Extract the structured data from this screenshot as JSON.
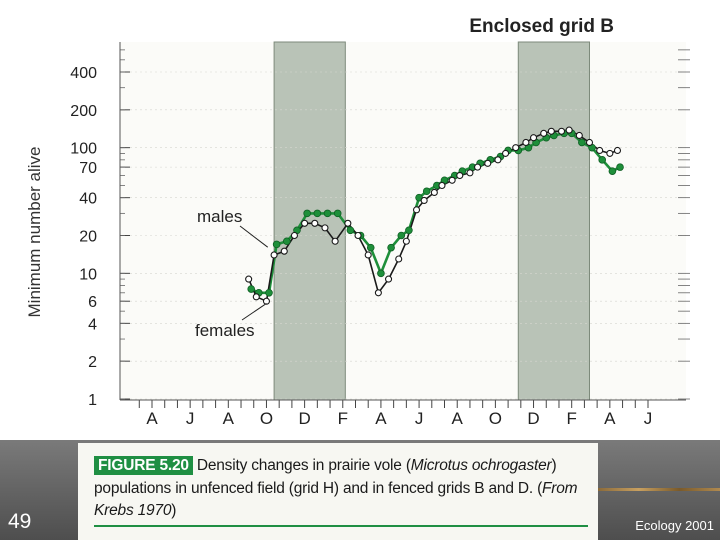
{
  "slide": {
    "number": "49",
    "org": "Ecology 2001"
  },
  "caption": {
    "figure_label": "FIGURE 5.20",
    "text_before_italic": "Density changes in prairie vole (",
    "italic": "Microtus ochrogaster",
    "text_mid": ") populations in unfenced field (grid H) and in fenced grids B and D. (",
    "italic_source": "From Krebs 1970",
    "text_end": ")"
  },
  "colors": {
    "male_series": "#1e8f3a",
    "female_series": "#1a1a1a",
    "shaded_band": "#b9c3b7",
    "plot_background": "#fbfbf8",
    "grid": "#d6d6d0",
    "caption_label": "#1f8f43"
  },
  "chart_data": {
    "type": "line",
    "title": "Enclosed grid B",
    "xlabel": "",
    "ylabel": "Minimum number alive",
    "yscale": "log",
    "ylim": [
      1,
      600
    ],
    "y_ticks": [
      1,
      2,
      4,
      6,
      10,
      20,
      40,
      70,
      100,
      200,
      400
    ],
    "xlim": [
      0,
      20
    ],
    "x_ticks": [
      {
        "label": "A",
        "x": 0.5
      },
      {
        "label": "J",
        "x": 2
      },
      {
        "label": "A",
        "x": 3.5
      },
      {
        "label": "O",
        "x": 5
      },
      {
        "label": "D",
        "x": 6.5
      },
      {
        "label": "F",
        "x": 8
      },
      {
        "label": "A",
        "x": 9.5
      },
      {
        "label": "J",
        "x": 11
      },
      {
        "label": "A",
        "x": 12.5
      },
      {
        "label": "O",
        "x": 14
      },
      {
        "label": "D",
        "x": 15.5
      },
      {
        "label": "F",
        "x": 17
      },
      {
        "label": "A",
        "x": 18.5
      },
      {
        "label": "J",
        "x": 20
      }
    ],
    "shaded_periods": [
      [
        5.3,
        8.1
      ],
      [
        14.9,
        17.7
      ]
    ],
    "annotations": [
      {
        "text": "males",
        "target": "males"
      },
      {
        "text": "females",
        "target": "females"
      }
    ],
    "series": [
      {
        "name": "males",
        "marker": "filled",
        "x": [
          4.4,
          4.7,
          5.1,
          5.4,
          5.8,
          6.2,
          6.6,
          7.0,
          7.4,
          7.8,
          8.3,
          8.7,
          9.1,
          9.5,
          9.9,
          10.3,
          10.6,
          11.0,
          11.3,
          11.7,
          12.0,
          12.4,
          12.7,
          13.1,
          13.4,
          13.8,
          14.2,
          14.5,
          14.9,
          15.3,
          15.6,
          16.0,
          16.3,
          16.7,
          17.0,
          17.4,
          17.8,
          18.2,
          18.6,
          18.9
        ],
        "y": [
          7.5,
          7,
          7,
          17,
          18,
          22,
          30,
          30,
          30,
          30,
          22,
          20,
          16,
          10,
          16,
          20,
          22,
          40,
          45,
          50,
          55,
          60,
          65,
          70,
          75,
          80,
          85,
          95,
          95,
          100,
          110,
          120,
          125,
          130,
          130,
          110,
          100,
          80,
          65,
          70
        ]
      },
      {
        "name": "females",
        "marker": "open",
        "x": [
          4.3,
          4.6,
          5.0,
          5.3,
          5.7,
          6.1,
          6.5,
          6.9,
          7.3,
          7.7,
          8.2,
          8.6,
          9.0,
          9.4,
          9.8,
          10.2,
          10.5,
          10.9,
          11.2,
          11.6,
          11.9,
          12.3,
          12.6,
          13.0,
          13.3,
          13.7,
          14.1,
          14.4,
          14.8,
          15.2,
          15.5,
          15.9,
          16.2,
          16.6,
          16.9,
          17.3,
          17.7,
          18.1,
          18.5,
          18.8
        ],
        "y": [
          9,
          6.5,
          6,
          14,
          15,
          20,
          25,
          25,
          23,
          18,
          25,
          20,
          14,
          7,
          9,
          13,
          18,
          32,
          38,
          44,
          50,
          55,
          60,
          63,
          70,
          75,
          80,
          90,
          100,
          110,
          120,
          130,
          135,
          135,
          138,
          125,
          110,
          95,
          90,
          95
        ]
      }
    ]
  }
}
